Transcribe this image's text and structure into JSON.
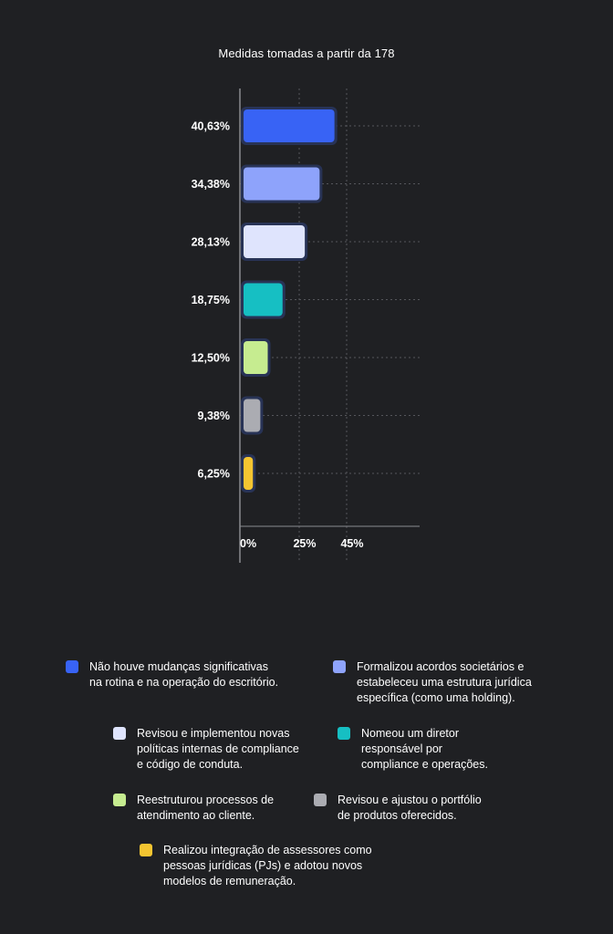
{
  "chart_data": {
    "type": "bar",
    "orientation": "horizontal",
    "title": "Medidas tomadas a partir da 178",
    "categories": [
      "Não houve mudanças significativas na rotina e na operação do escritório.",
      "Formalizou acordos societários e estabeleceu uma estrutura jurídica específica (como uma holding).",
      "Revisou e implementou novas políticas internas de compliance e código de conduta.",
      "Nomeou um diretor responsável por compliance e operações.",
      "Reestruturou processos de atendimento ao cliente.",
      "Revisou e ajustou o portfólio de produtos oferecidos.",
      "Realizou integração de assessores como pessoas jurídicas (PJs) e adotou novos modelos de remuneração."
    ],
    "values": [
      40.63,
      34.38,
      28.13,
      18.75,
      12.5,
      9.38,
      6.25
    ],
    "value_labels": [
      "40,63%",
      "34,38%",
      "28,13%",
      "18,75%",
      "12,50%",
      "9,38%",
      "6,25%"
    ],
    "colors": [
      "#3863f5",
      "#8ea3fb",
      "#dfe4fd",
      "#16bfc3",
      "#c6ec90",
      "#abacb2",
      "#f4c531"
    ],
    "xticks": [
      {
        "value": 0,
        "label": "0%"
      },
      {
        "value": 25,
        "label": "25%"
      },
      {
        "value": 45,
        "label": "45%"
      }
    ],
    "xlim": [
      0,
      75
    ],
    "grid": true,
    "legend_position": "bottom"
  },
  "legend": [
    {
      "text": "Não houve mudanças significativas\nna rotina e na operação do escritório.",
      "color": "#3863f5"
    },
    {
      "text": "Formalizou acordos societários e\nestabeleceu uma estrutura jurídica\nespecífica (como uma holding).",
      "color": "#8ea3fb"
    },
    {
      "text": "Revisou e implementou novas\npolíticas internas de compliance\ne código de conduta.",
      "color": "#dfe4fd"
    },
    {
      "text": "Nomeou um diretor\nresponsável por\ncompliance e operações.",
      "color": "#16bfc3"
    },
    {
      "text": "Reestruturou processos de\natendimento ao cliente.",
      "color": "#c6ec90"
    },
    {
      "text": "Revisou e ajustou o portfólio\nde produtos oferecidos.",
      "color": "#abacb2"
    },
    {
      "text": "Realizou integração de assessores como\npessoas jurídicas (PJs) e adotou novos\nmodelos de remuneração.",
      "color": "#f4c531"
    }
  ],
  "theme": {
    "background": "#1f2023",
    "bar_outline": "#283356",
    "grid_color": "#55565b",
    "axis_color": "#8a8b90",
    "text_color": "#ffffff"
  }
}
